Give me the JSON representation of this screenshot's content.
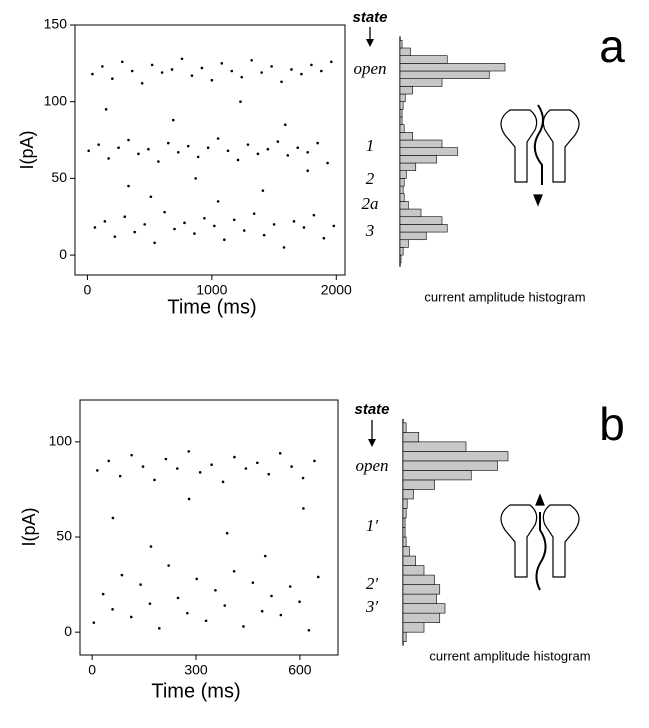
{
  "chart_data": [
    {
      "type": "scatter",
      "panel_label": "a",
      "xlabel": "Time (ms)",
      "ylabel": "I(pA)",
      "xlim": [
        -100,
        2070
      ],
      "ylim": [
        -13,
        150
      ],
      "xticks": [
        0,
        1000,
        2000
      ],
      "yticks": [
        0,
        50,
        100,
        150
      ],
      "color": "#000000",
      "x": [
        40,
        120,
        200,
        280,
        360,
        440,
        520,
        600,
        680,
        760,
        840,
        920,
        1000,
        1080,
        1160,
        1240,
        1320,
        1400,
        1480,
        1560,
        1640,
        1720,
        1800,
        1880,
        1960,
        10,
        90,
        170,
        250,
        330,
        410,
        490,
        570,
        650,
        730,
        810,
        890,
        970,
        1050,
        1130,
        1210,
        1290,
        1370,
        1450,
        1530,
        1610,
        1690,
        1770,
        1850,
        1930,
        60,
        140,
        220,
        300,
        380,
        460,
        540,
        620,
        700,
        780,
        860,
        940,
        1020,
        1100,
        1180,
        1260,
        1340,
        1420,
        1500,
        1580,
        1660,
        1740,
        1820,
        1900,
        1980,
        150,
        330,
        510,
        690,
        870,
        1050,
        1230,
        1410,
        1590,
        1770
      ],
      "y": [
        118,
        123,
        115,
        126,
        120,
        112,
        124,
        119,
        121,
        128,
        117,
        122,
        114,
        125,
        120,
        116,
        127,
        119,
        123,
        113,
        121,
        118,
        124,
        120,
        126,
        68,
        72,
        63,
        70,
        75,
        66,
        69,
        61,
        73,
        67,
        71,
        64,
        70,
        76,
        68,
        62,
        72,
        66,
        69,
        74,
        65,
        70,
        67,
        73,
        60,
        18,
        22,
        12,
        25,
        15,
        20,
        8,
        28,
        17,
        21,
        14,
        24,
        19,
        10,
        23,
        16,
        27,
        13,
        20,
        5,
        22,
        18,
        26,
        11,
        19,
        95,
        45,
        38,
        88,
        50,
        35,
        100,
        42,
        85,
        55
      ],
      "state_header": "state",
      "state_labels": [
        "open",
        "1",
        "2",
        "2a",
        "3"
      ],
      "histogram": {
        "caption": "current amplitude histogram",
        "bins": [
          -5,
          0,
          5,
          10,
          15,
          20,
          25,
          30,
          35,
          40,
          45,
          50,
          55,
          60,
          65,
          70,
          75,
          80,
          85,
          90,
          95,
          100,
          105,
          110,
          115,
          120,
          125,
          130,
          135,
          140
        ],
        "counts": [
          1,
          3,
          8,
          25,
          45,
          40,
          20,
          8,
          4,
          3,
          4,
          6,
          15,
          35,
          55,
          40,
          12,
          4,
          2,
          2,
          3,
          5,
          12,
          40,
          85,
          100,
          45,
          10,
          2
        ]
      }
    },
    {
      "type": "scatter",
      "panel_label": "b",
      "xlabel": "Time (ms)",
      "ylabel": "I(pA)",
      "xlim": [
        -35,
        710
      ],
      "ylim": [
        -12,
        122
      ],
      "xticks": [
        0,
        300,
        600
      ],
      "yticks": [
        0,
        50,
        100
      ],
      "color": "#000000",
      "x": [
        15,
        48,
        81,
        114,
        147,
        180,
        213,
        246,
        279,
        312,
        345,
        378,
        411,
        444,
        477,
        510,
        543,
        576,
        609,
        642,
        5,
        32,
        59,
        86,
        113,
        140,
        167,
        194,
        221,
        248,
        275,
        302,
        329,
        356,
        383,
        410,
        437,
        464,
        491,
        518,
        545,
        572,
        599,
        626,
        653,
        60,
        170,
        280,
        390,
        500,
        610
      ],
      "y": [
        85,
        90,
        82,
        93,
        87,
        80,
        91,
        86,
        95,
        84,
        88,
        79,
        92,
        86,
        89,
        83,
        94,
        87,
        81,
        90,
        5,
        20,
        12,
        30,
        8,
        25,
        15,
        2,
        35,
        18,
        10,
        28,
        6,
        22,
        14,
        32,
        3,
        26,
        11,
        19,
        9,
        24,
        16,
        1,
        29,
        60,
        45,
        70,
        52,
        40,
        65
      ],
      "state_header": "state",
      "state_labels": [
        "open",
        "1′",
        "2′",
        "3′"
      ],
      "histogram": {
        "caption": "current amplitude histogram",
        "bins": [
          -5,
          0,
          5,
          10,
          15,
          20,
          25,
          30,
          35,
          40,
          45,
          50,
          55,
          60,
          65,
          70,
          75,
          80,
          85,
          90,
          95,
          100,
          105,
          110
        ],
        "counts": [
          3,
          20,
          35,
          40,
          32,
          35,
          30,
          20,
          12,
          6,
          3,
          2,
          2,
          3,
          4,
          10,
          30,
          65,
          90,
          100,
          60,
          15,
          3
        ]
      }
    }
  ]
}
